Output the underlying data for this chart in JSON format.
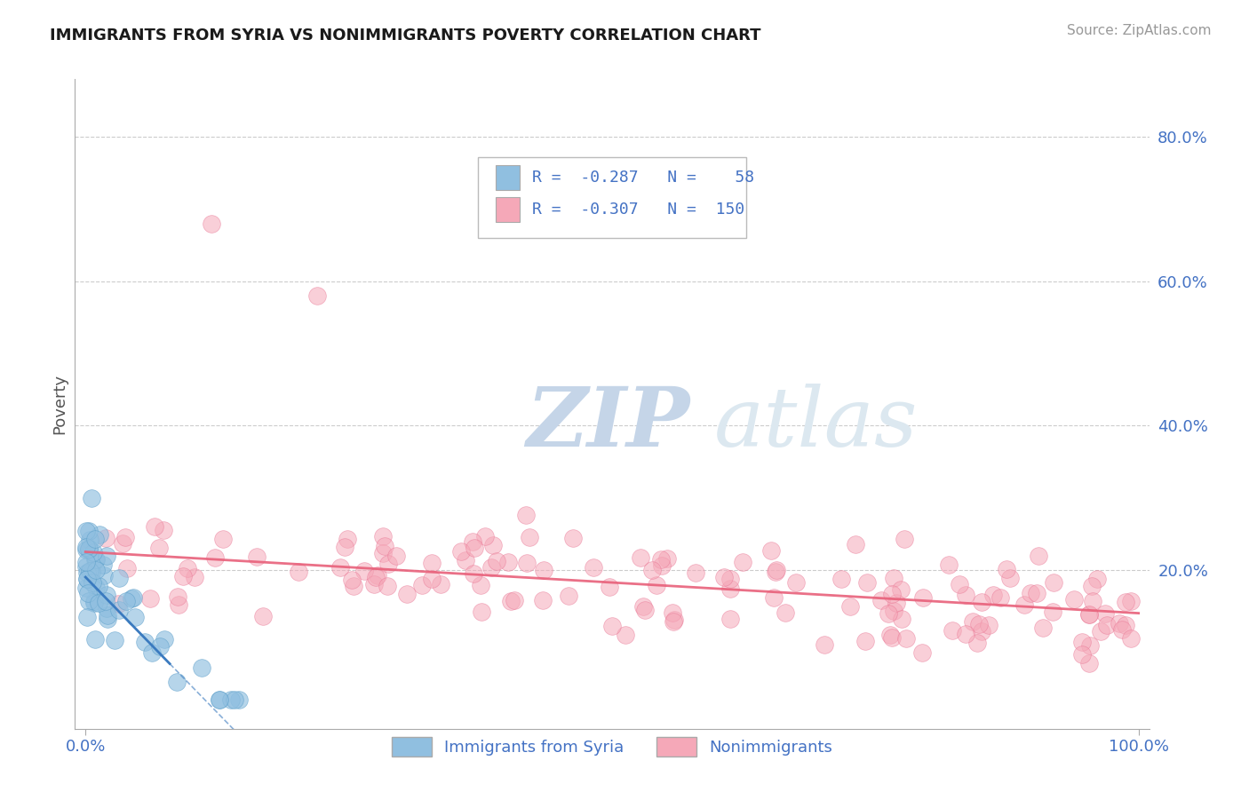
{
  "title": "IMMIGRANTS FROM SYRIA VS NONIMMIGRANTS POVERTY CORRELATION CHART",
  "source": "Source: ZipAtlas.com",
  "ylabel": "Poverty",
  "xlim": [
    -0.01,
    1.01
  ],
  "ylim": [
    -0.02,
    0.88
  ],
  "x_tick_labels": [
    "0.0%",
    "100.0%"
  ],
  "y_tick_labels_right": [
    "20.0%",
    "40.0%",
    "60.0%",
    "80.0%"
  ],
  "y_tick_vals": [
    0.2,
    0.4,
    0.6,
    0.8
  ],
  "legend_label1": "Immigrants from Syria",
  "legend_label2": "Nonimmigrants",
  "R1": "-0.287",
  "N1": "58",
  "R2": "-0.307",
  "N2": "150",
  "color_blue": "#90bfe0",
  "color_blue_edge": "#5a9ec9",
  "color_blue_line": "#3a7abf",
  "color_pink": "#f5a8b8",
  "color_pink_edge": "#e87090",
  "color_pink_line": "#e8607a",
  "color_grid": "#cccccc",
  "background_color": "#ffffff",
  "title_fontsize": 13,
  "tick_fontsize": 13,
  "label_fontsize": 13
}
